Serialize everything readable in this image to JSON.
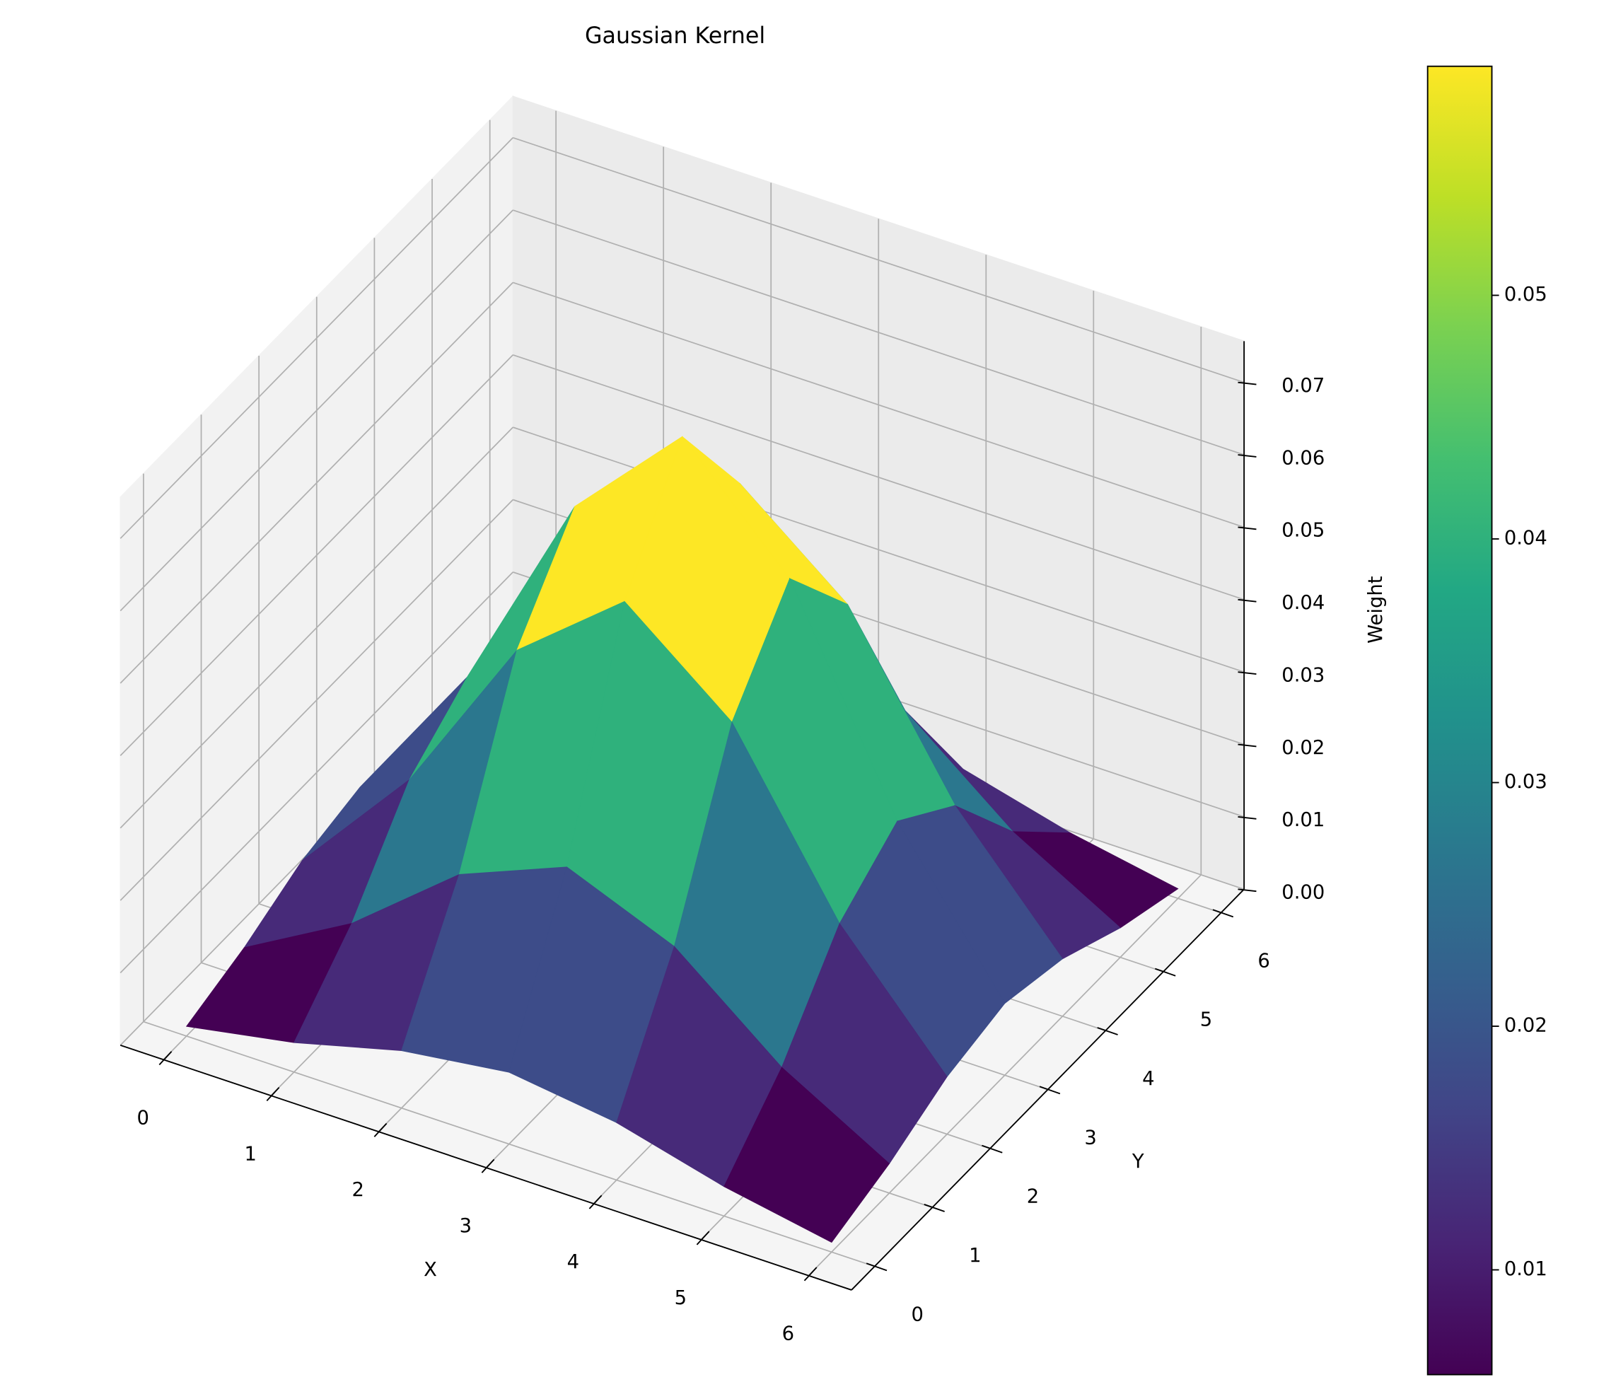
{
  "chart_data": {
    "type": "surface",
    "title": "Gaussian Kernel",
    "xlabel": "X",
    "ylabel": "Y",
    "zlabel": "Weight",
    "x": [
      0,
      1,
      2,
      3,
      4,
      5,
      6
    ],
    "y": [
      0,
      1,
      2,
      3,
      4,
      5,
      6
    ],
    "z": [
      [
        0.00134,
        0.00407,
        0.00793,
        0.00991,
        0.00793,
        0.00407,
        0.00134
      ],
      [
        0.00407,
        0.01239,
        0.02412,
        0.03013,
        0.02412,
        0.01239,
        0.00407
      ],
      [
        0.00793,
        0.02412,
        0.04696,
        0.05866,
        0.04696,
        0.02412,
        0.00793
      ],
      [
        0.00991,
        0.03013,
        0.05866,
        0.07328,
        0.05866,
        0.03013,
        0.00991
      ],
      [
        0.00793,
        0.02412,
        0.04696,
        0.05866,
        0.04696,
        0.02412,
        0.00793
      ],
      [
        0.00407,
        0.01239,
        0.02412,
        0.03013,
        0.02412,
        0.01239,
        0.00407
      ],
      [
        0.00134,
        0.00407,
        0.00793,
        0.00991,
        0.00793,
        0.00407,
        0.00134
      ]
    ],
    "xlim": [
      -0.4,
      6.4
    ],
    "ylim": [
      -0.4,
      6.4
    ],
    "zlim": [
      0,
      0.0757
    ],
    "xticks": [
      0,
      1,
      2,
      3,
      4,
      5,
      6
    ],
    "yticks": [
      0,
      1,
      2,
      3,
      4,
      5,
      6
    ],
    "zticks": [
      {
        "value": 0,
        "label": "0.00"
      },
      0.01,
      0.02,
      0.03,
      0.04,
      0.05,
      0.06,
      0.07
    ],
    "colormap": "viridis",
    "grid": true,
    "colorbar": {
      "clim": [
        0.0057,
        0.0594
      ],
      "ticks": [
        0.01,
        0.02,
        0.03,
        0.04,
        0.05
      ]
    }
  }
}
